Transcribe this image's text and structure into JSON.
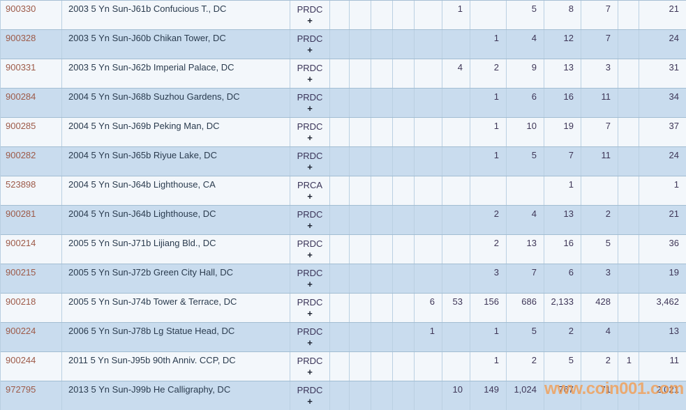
{
  "watermark": {
    "text": "www.coin001.com",
    "color": "#f39e52"
  },
  "colors": {
    "row_light": "#f3f7fb",
    "row_blue": "#c9dcee",
    "border": "#a2bdd2",
    "id_link": "#9d5a48",
    "description_text": "#2a3b4e",
    "number_text": "#3e3657"
  },
  "table": {
    "plus_label": "+",
    "rows": [
      {
        "id": "900330",
        "desc": "2003 5 Yn Sun-J61b Confucious T., DC",
        "type": "PRDC",
        "values": [
          "",
          "",
          "",
          "",
          "",
          "1",
          "",
          "5",
          "8",
          "7",
          "",
          "21"
        ]
      },
      {
        "id": "900328",
        "desc": "2003 5 Yn Sun-J60b Chikan Tower, DC",
        "type": "PRDC",
        "values": [
          "",
          "",
          "",
          "",
          "",
          "",
          "1",
          "4",
          "12",
          "7",
          "",
          "24"
        ]
      },
      {
        "id": "900331",
        "desc": "2003 5 Yn Sun-J62b Imperial Palace, DC",
        "type": "PRDC",
        "values": [
          "",
          "",
          "",
          "",
          "",
          "4",
          "2",
          "9",
          "13",
          "3",
          "",
          "31"
        ]
      },
      {
        "id": "900284",
        "desc": "2004 5 Yn Sun-J68b Suzhou Gardens, DC",
        "type": "PRDC",
        "values": [
          "",
          "",
          "",
          "",
          "",
          "",
          "1",
          "6",
          "16",
          "11",
          "",
          "34"
        ]
      },
      {
        "id": "900285",
        "desc": "2004 5 Yn Sun-J69b Peking Man, DC",
        "type": "PRDC",
        "values": [
          "",
          "",
          "",
          "",
          "",
          "",
          "1",
          "10",
          "19",
          "7",
          "",
          "37"
        ]
      },
      {
        "id": "900282",
        "desc": "2004 5 Yn Sun-J65b Riyue Lake, DC",
        "type": "PRDC",
        "values": [
          "",
          "",
          "",
          "",
          "",
          "",
          "1",
          "5",
          "7",
          "11",
          "",
          "24"
        ]
      },
      {
        "id": "523898",
        "desc": "2004 5 Yn Sun-J64b Lighthouse, CA",
        "type": "PRCA",
        "values": [
          "",
          "",
          "",
          "",
          "",
          "",
          "",
          "",
          "1",
          "",
          "",
          "1"
        ]
      },
      {
        "id": "900281",
        "desc": "2004 5 Yn Sun-J64b Lighthouse, DC",
        "type": "PRDC",
        "values": [
          "",
          "",
          "",
          "",
          "",
          "",
          "2",
          "4",
          "13",
          "2",
          "",
          "21"
        ]
      },
      {
        "id": "900214",
        "desc": "2005 5 Yn Sun-J71b Lijiang Bld., DC",
        "type": "PRDC",
        "values": [
          "",
          "",
          "",
          "",
          "",
          "",
          "2",
          "13",
          "16",
          "5",
          "",
          "36"
        ]
      },
      {
        "id": "900215",
        "desc": "2005 5 Yn Sun-J72b Green City Hall, DC",
        "type": "PRDC",
        "values": [
          "",
          "",
          "",
          "",
          "",
          "",
          "3",
          "7",
          "6",
          "3",
          "",
          "19"
        ]
      },
      {
        "id": "900218",
        "desc": "2005 5 Yn Sun-J74b Tower & Terrace, DC",
        "type": "PRDC",
        "values": [
          "",
          "",
          "",
          "",
          "6",
          "53",
          "156",
          "686",
          "2,133",
          "428",
          "",
          "3,462"
        ]
      },
      {
        "id": "900224",
        "desc": "2006 5 Yn Sun-J78b Lg Statue Head, DC",
        "type": "PRDC",
        "values": [
          "",
          "",
          "",
          "",
          "1",
          "",
          "1",
          "5",
          "2",
          "4",
          "",
          "13"
        ]
      },
      {
        "id": "900244",
        "desc": "2011 5 Yn Sun-J95b 90th Anniv. CCP, DC",
        "type": "PRDC",
        "values": [
          "",
          "",
          "",
          "",
          "",
          "",
          "1",
          "2",
          "5",
          "2",
          "1",
          "11"
        ]
      },
      {
        "id": "972795",
        "desc": "2013 5 Yn Sun-J99b He Calligraphy, DC",
        "type": "PRDC",
        "values": [
          "",
          "",
          "",
          "",
          "",
          "10",
          "149",
          "1,024",
          "767",
          "71",
          "",
          "2,021"
        ]
      }
    ]
  }
}
